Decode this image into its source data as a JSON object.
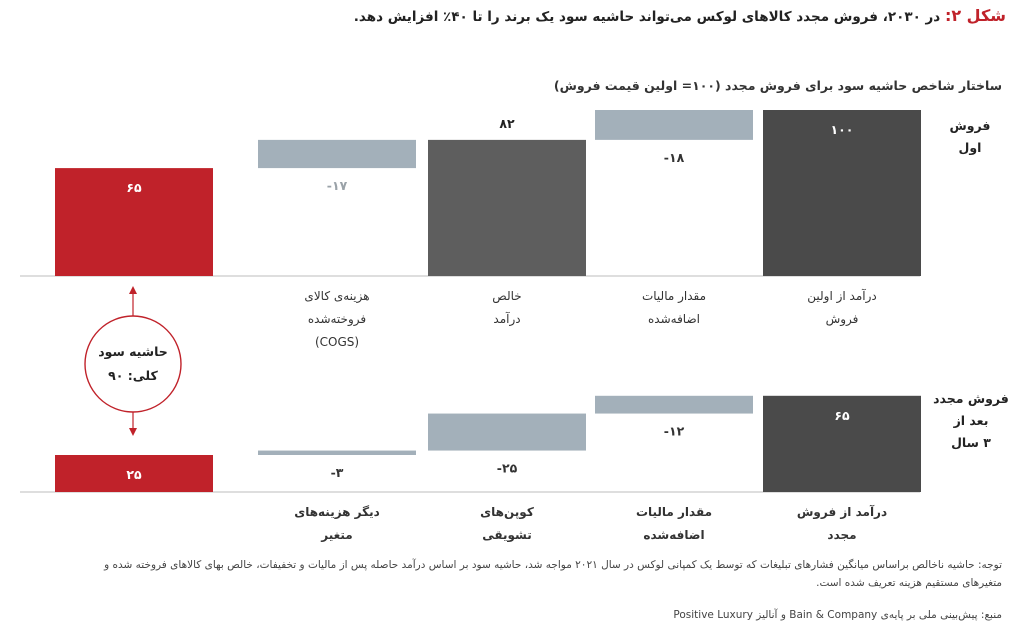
{
  "header": {
    "figure_label": "شکل ۲:",
    "title": "در ۲۰۳۰، فروش مجدد کالاهای لوکس می‌تواند حاشیه سود یک برند را تا ۴۰٪ افزایش دهد."
  },
  "chart_data": {
    "type": "waterfall",
    "subtitle": "ساختار شاخص حاشیه سود برای فروش مجدد (۱۰۰= اولین قیمت فروش)",
    "colors": {
      "total": "#4a4a4a",
      "deduction": "#a3b0ba",
      "margin": "#c0222a",
      "net": "#5e5e5e"
    },
    "panels": [
      {
        "row_label": "فروش\nاول",
        "bars": [
          {
            "label": [
              "درآمد از اولین",
              "فروش"
            ],
            "value": 100,
            "display": "۱۰۰",
            "kind": "total"
          },
          {
            "label": [
              "مقدار مالیات",
              "اضافه‌شده"
            ],
            "value": -18,
            "display": "-۱۸",
            "kind": "deduction"
          },
          {
            "label": [
              "خالص",
              "درآمد"
            ],
            "value": 82,
            "display": "۸۲",
            "kind": "net"
          },
          {
            "label": [
              "هزینه‌ی کالای",
              "فروخته‌شده",
              "(COGS)"
            ],
            "value": -17,
            "display": "-۱۷",
            "kind": "deduction"
          },
          {
            "label": [],
            "value": 65,
            "display": "۶۵",
            "kind": "margin"
          }
        ]
      },
      {
        "row_label": "فروش مجدد\nبعد از\n۳ سال",
        "bars": [
          {
            "label": [
              "درآمد از فروش",
              "مجدد"
            ],
            "value": 65,
            "display": "۶۵",
            "kind": "total"
          },
          {
            "label": [
              "مقدار مالیات",
              "اضافه‌شده"
            ],
            "value": -12,
            "display": "-۱۲",
            "kind": "deduction"
          },
          {
            "label": [
              "کوپن‌های",
              "تشویقی"
            ],
            "value": -25,
            "display": "-۲۵",
            "kind": "deduction"
          },
          {
            "label": [
              "دیگر هزینه‌های",
              "متغیر"
            ],
            "value": -3,
            "display": "-۳",
            "kind": "deduction"
          },
          {
            "label": [],
            "value": 25,
            "display": "۲۵",
            "kind": "margin"
          }
        ]
      }
    ],
    "total_margin": {
      "line1": "حاشیه سود",
      "line2": "کلی: ۹۰"
    }
  },
  "footer": {
    "note": "توجه: حاشیه ناخالص براساس میانگین فشارهای تبلیغات که توسط یک کمپانی لوکس در سال ۲۰۲۱ مواجه شد، حاشیه سود بر اساس درآمد حاصله پس از مالیات و تخفیفات، خالص بهای کالاهای فروخته شده و متغیرهای مستقیم هزینه تعریف شده است.",
    "source": "منبع: پیش‌بینی ملی بر پایه‌ی Bain & Company و آنالیز Positive Luxury"
  }
}
